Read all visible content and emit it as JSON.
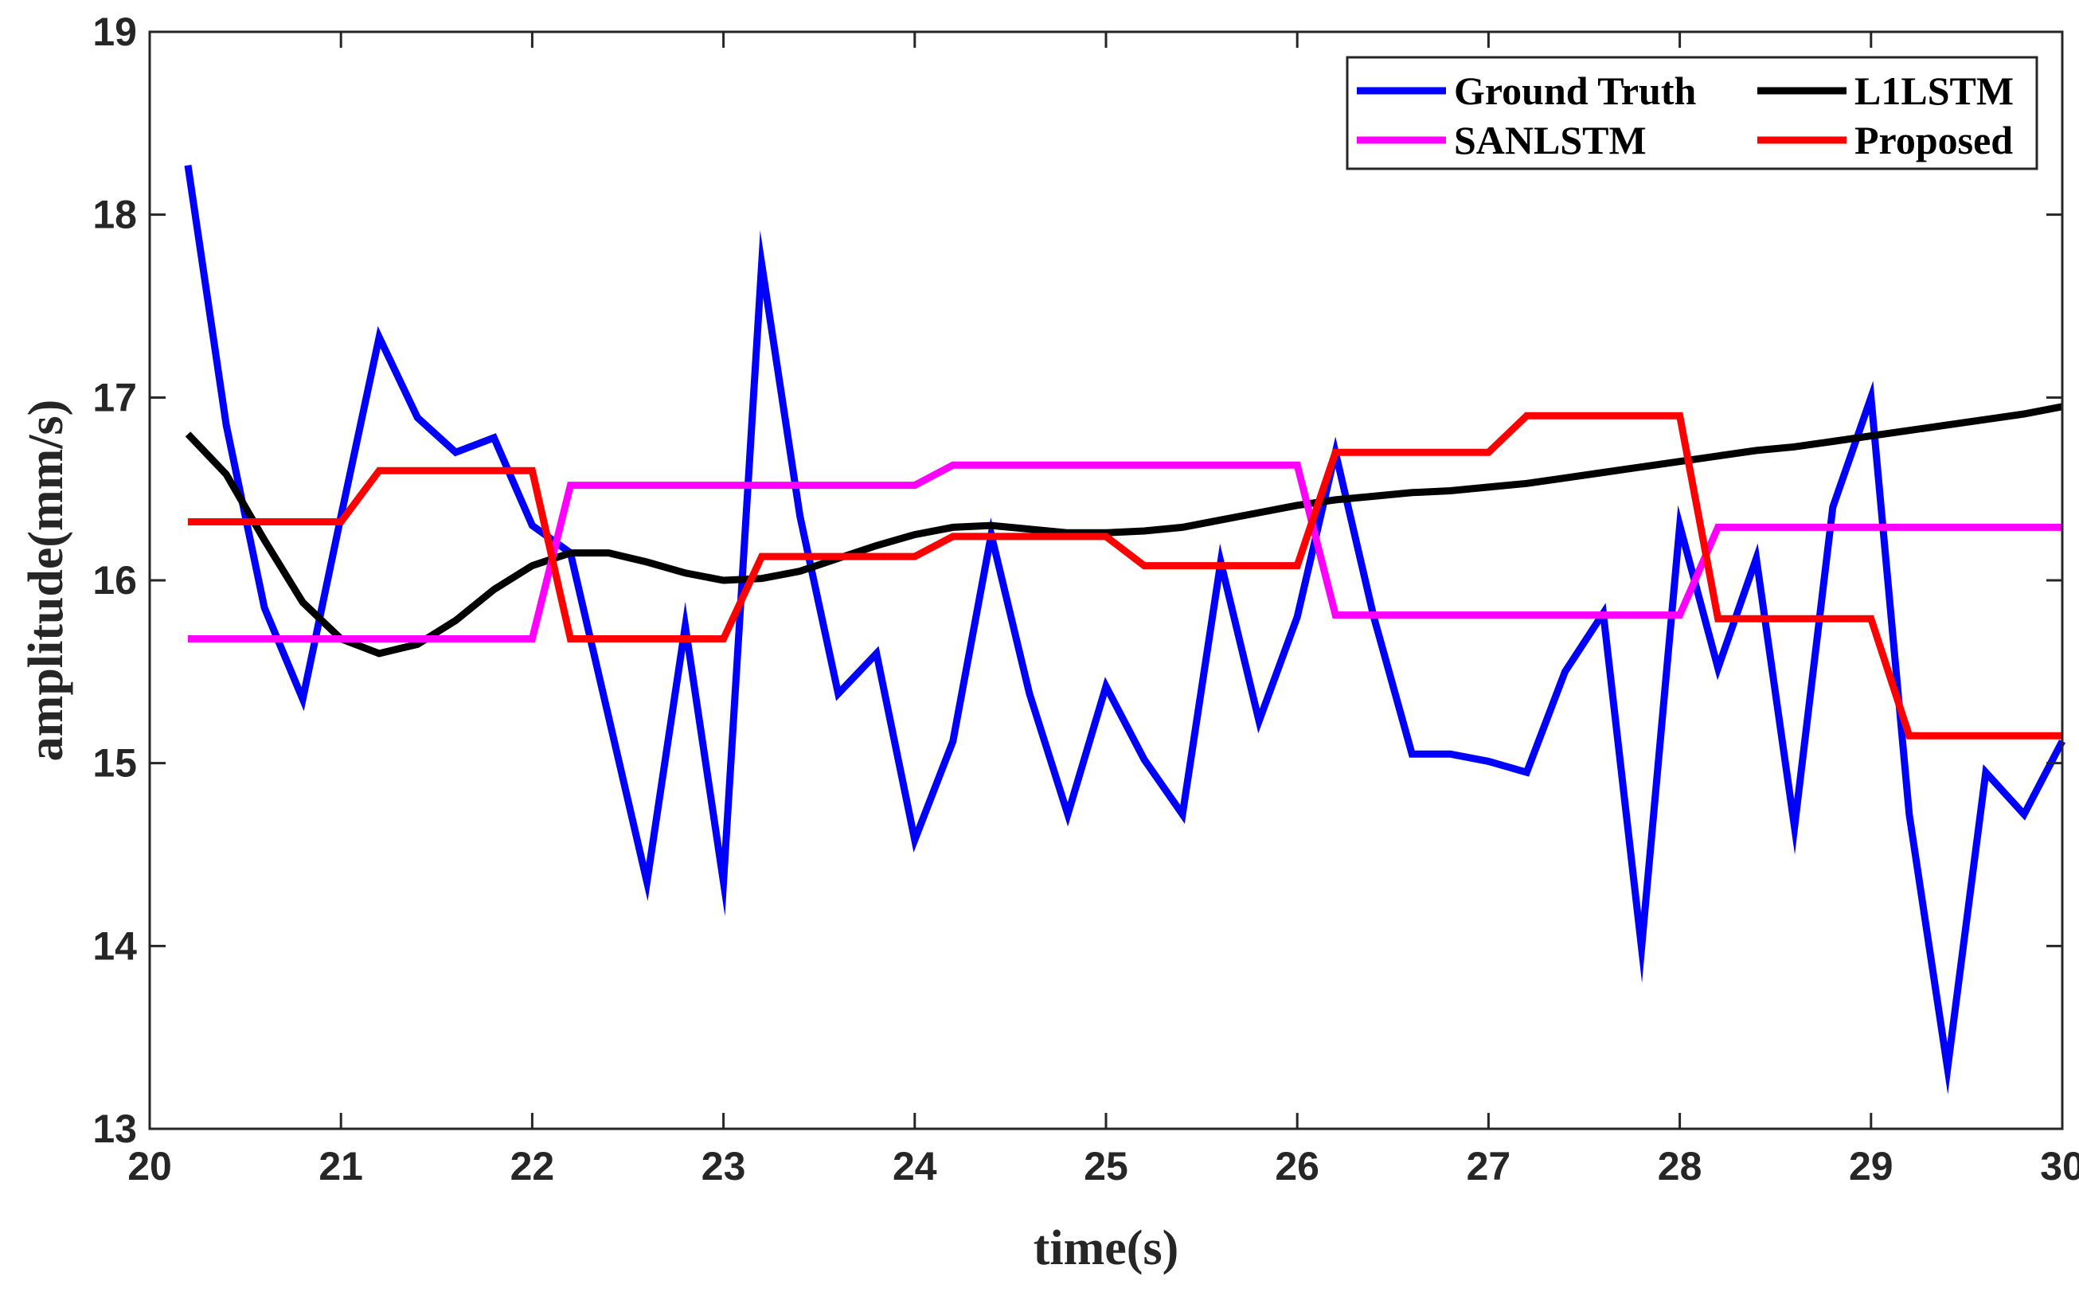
{
  "chart_data": {
    "type": "line",
    "xlabel": "time(s)",
    "ylabel": "amplitude(mm/s)",
    "xlim": [
      20,
      30
    ],
    "ylim": [
      13,
      19
    ],
    "xticks": [
      20,
      21,
      22,
      23,
      24,
      25,
      26,
      27,
      28,
      29,
      30
    ],
    "yticks": [
      13,
      14,
      15,
      16,
      17,
      18,
      19
    ],
    "legend_position": "top-right",
    "legend_columns": 2,
    "grid": false,
    "series": [
      {
        "name": "Ground Truth",
        "color": "#0000ff",
        "x": [
          20.2,
          20.4,
          20.6,
          20.8,
          21.0,
          21.2,
          21.4,
          21.6,
          21.8,
          22.0,
          22.2,
          22.4,
          22.6,
          22.8,
          23.0,
          23.2,
          23.4,
          23.6,
          23.8,
          24.0,
          24.2,
          24.4,
          24.6,
          24.8,
          25.0,
          25.2,
          25.4,
          25.6,
          25.8,
          26.0,
          26.2,
          26.4,
          26.6,
          26.8,
          27.0,
          27.2,
          27.4,
          27.6,
          27.8,
          28.0,
          28.2,
          28.4,
          28.6,
          28.8,
          29.0,
          29.2,
          29.4,
          29.6,
          29.8,
          30.0
        ],
        "y": [
          18.27,
          16.85,
          15.85,
          15.35,
          16.35,
          17.33,
          16.89,
          16.7,
          16.78,
          16.3,
          16.15,
          15.25,
          14.35,
          15.75,
          14.35,
          17.73,
          16.35,
          15.38,
          15.6,
          14.58,
          15.12,
          16.25,
          15.38,
          14.72,
          15.42,
          15.02,
          14.72,
          16.1,
          15.23,
          15.8,
          16.7,
          15.8,
          15.05,
          15.05,
          15.01,
          14.95,
          15.5,
          15.82,
          13.99,
          16.3,
          15.52,
          16.12,
          14.65,
          16.4,
          17.0,
          14.72,
          13.33,
          14.95,
          14.72,
          15.12
        ]
      },
      {
        "name": "L1LSTM",
        "color": "#000000",
        "x": [
          20.2,
          20.4,
          20.6,
          20.8,
          21.0,
          21.2,
          21.4,
          21.6,
          21.8,
          22.0,
          22.2,
          22.4,
          22.6,
          22.8,
          23.0,
          23.2,
          23.4,
          23.6,
          23.8,
          24.0,
          24.2,
          24.4,
          24.6,
          24.8,
          25.0,
          25.2,
          25.4,
          25.6,
          25.8,
          26.0,
          26.2,
          26.4,
          26.6,
          26.8,
          27.0,
          27.2,
          27.4,
          27.6,
          27.8,
          28.0,
          28.2,
          28.4,
          28.6,
          28.8,
          29.0,
          29.2,
          29.4,
          29.6,
          29.8,
          30.0
        ],
        "y": [
          16.8,
          16.58,
          16.22,
          15.88,
          15.68,
          15.6,
          15.65,
          15.78,
          15.95,
          16.08,
          16.15,
          16.15,
          16.1,
          16.04,
          16.0,
          16.01,
          16.05,
          16.12,
          16.19,
          16.25,
          16.29,
          16.3,
          16.28,
          16.26,
          16.26,
          16.27,
          16.29,
          16.33,
          16.37,
          16.41,
          16.44,
          16.46,
          16.48,
          16.49,
          16.51,
          16.53,
          16.56,
          16.59,
          16.62,
          16.65,
          16.68,
          16.71,
          16.73,
          16.76,
          16.79,
          16.82,
          16.85,
          16.88,
          16.91,
          16.95
        ]
      },
      {
        "name": "SANLSTM",
        "color": "#ff00ff",
        "x": [
          20.2,
          22.0,
          22.2,
          24.0,
          24.2,
          26.0,
          26.2,
          28.0,
          28.2,
          30.0
        ],
        "y": [
          15.68,
          15.68,
          16.52,
          16.52,
          16.63,
          16.63,
          15.81,
          15.81,
          16.29,
          16.29
        ]
      },
      {
        "name": "Proposed",
        "color": "#ff0000",
        "x": [
          20.2,
          21.0,
          21.2,
          22.0,
          22.2,
          23.0,
          23.2,
          24.0,
          24.2,
          25.0,
          25.2,
          26.0,
          26.2,
          27.0,
          27.2,
          28.0,
          28.2,
          29.0,
          29.2,
          30.0
        ],
        "y": [
          16.32,
          16.32,
          16.6,
          16.6,
          15.68,
          15.68,
          16.13,
          16.13,
          16.24,
          16.24,
          16.08,
          16.08,
          16.7,
          16.7,
          16.9,
          16.9,
          15.79,
          15.79,
          15.15,
          15.15
        ]
      }
    ]
  }
}
